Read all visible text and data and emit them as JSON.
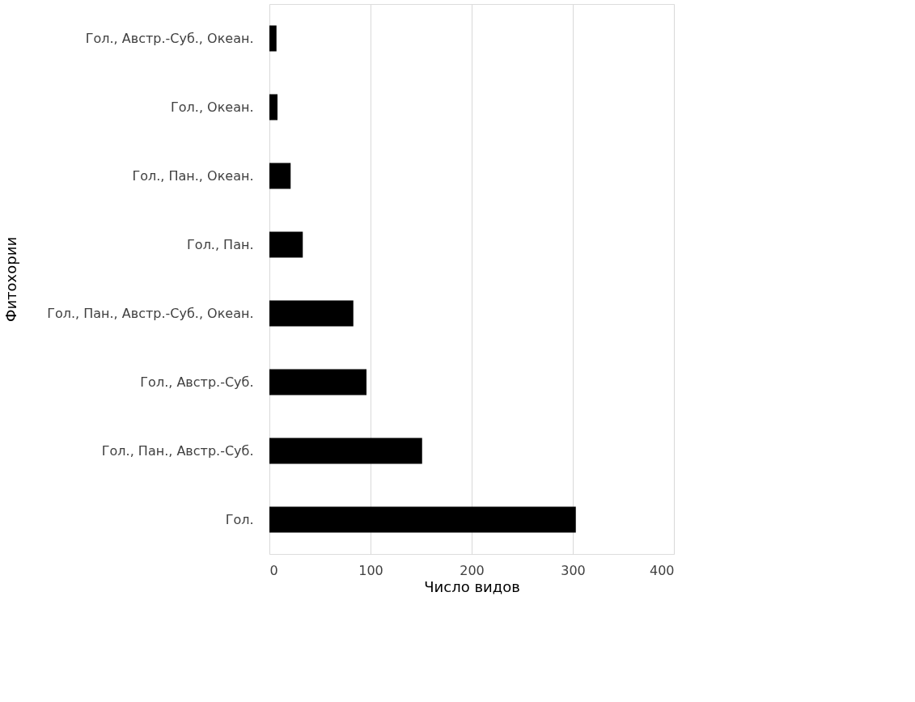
{
  "chart_data": {
    "type": "bar",
    "orientation": "horizontal",
    "xlabel": "Число видов",
    "ylabel": "Фитохории",
    "categories": [
      "Гол., Австр.-Суб., Океан.",
      "Гол., Океан.",
      "Гол., Пан., Океан.",
      "Гол., Пан.",
      "Гол., Пан., Австр.-Суб., Океан.",
      "Гол., Австр.-Суб.",
      "Гол., Пан., Австр.-Суб.",
      "Гол."
    ],
    "values": [
      7,
      8,
      21,
      33,
      83,
      96,
      151,
      303
    ],
    "color": "#000000",
    "xlim": [
      0,
      400
    ],
    "xticks": [
      0,
      100,
      200,
      300,
      400
    ],
    "grid": "x"
  }
}
